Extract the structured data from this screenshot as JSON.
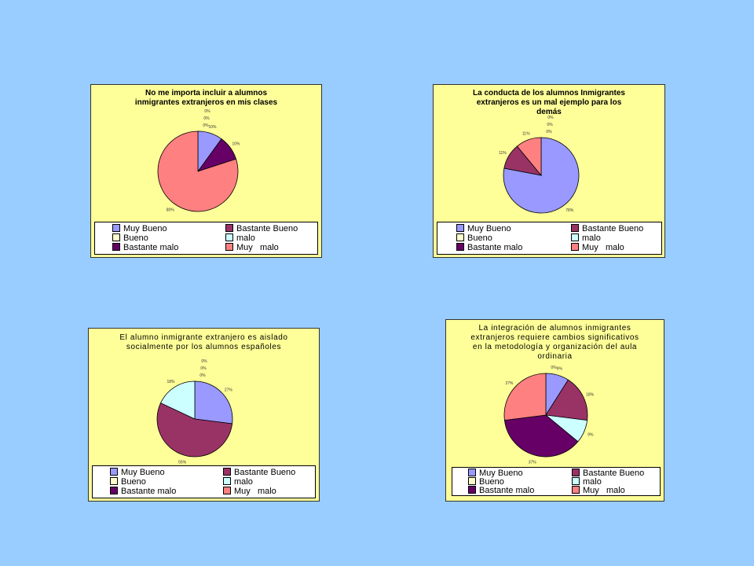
{
  "colors": {
    "Muy Bueno": "#9999ff",
    "Bastante Bueno": "#993366",
    "Bueno": "#ffffcc",
    "malo": "#ccffff",
    "Bastante malo": "#660066",
    "Muy   malo": "#ff8080"
  },
  "legend_labels": [
    "Muy Bueno",
    "Bastante Bueno",
    "Bueno",
    "malo",
    "Bastante malo",
    "Muy   malo"
  ],
  "chart_data": [
    {
      "type": "pie",
      "title": "No me importa  incluir a alumnos\ninmigrantes extranjeros en mis clases",
      "categories": [
        "Muy Bueno",
        "Bastante Bueno",
        "Bueno",
        "malo",
        "Bastante malo",
        "Muy   malo"
      ],
      "values": [
        10,
        0,
        0,
        0,
        10,
        80
      ],
      "labels": [
        "10%",
        "0%",
        "0%",
        "0%",
        "10%",
        "80%"
      ],
      "legend": "bottom"
    },
    {
      "type": "pie",
      "title": "La conducta de los alumnos Inmigrantes\nextranjeros es un mal ejemplo para los\ndemás",
      "categories": [
        "Muy Bueno",
        "Bastante Bueno",
        "Bueno",
        "malo",
        "Bastante malo",
        "Muy   malo"
      ],
      "values": [
        78,
        11,
        0,
        0,
        0,
        11
      ],
      "labels": [
        "78%",
        "11%",
        "0%",
        "0%",
        "0%",
        "11%"
      ],
      "legend": "bottom"
    },
    {
      "type": "pie",
      "title": "El alumno inmigrante extranjero es aislado\nsocialmente por los alumnos españoles",
      "categories": [
        "Muy Bueno",
        "Bastante Bueno",
        "Bueno",
        "malo",
        "Bastante malo",
        "Muy   malo"
      ],
      "values": [
        27,
        55,
        0,
        18,
        0,
        0
      ],
      "labels": [
        "27%",
        "55%",
        "0%",
        "18%",
        "0%",
        "0%"
      ],
      "legend": "bottom"
    },
    {
      "type": "pie",
      "title": "La integración de alumnos inmigrantes\nextranjeros requiere cambios significativos\nen la metodología y organización del aula\nordinaria",
      "categories": [
        "Muy Bueno",
        "Bastante Bueno",
        "Bueno",
        "malo",
        "Bastante malo",
        "Muy   malo"
      ],
      "values": [
        9,
        18,
        0,
        9,
        37,
        27
      ],
      "labels": [
        "9%",
        "18%",
        "0%",
        "9%",
        "37%",
        "27%"
      ],
      "legend": "bottom"
    }
  ]
}
